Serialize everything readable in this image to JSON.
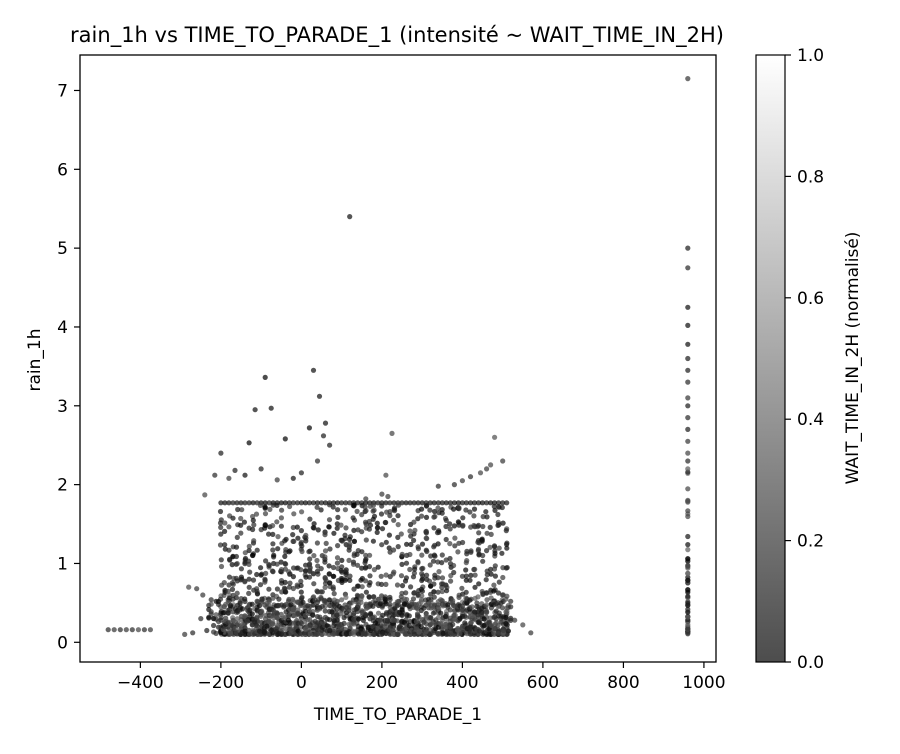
{
  "chart_data": {
    "type": "scatter",
    "title": "rain_1h vs TIME_TO_PARADE_1 (intensité ~ WAIT_TIME_IN_2H)",
    "xlabel": "TIME_TO_PARADE_1",
    "ylabel": "rain_1h",
    "xlim": [
      -550,
      1030
    ],
    "ylim": [
      -0.25,
      7.45
    ],
    "xticks": [
      -400,
      -200,
      0,
      200,
      400,
      600,
      800,
      1000
    ],
    "xtick_labels": [
      "−400",
      "−200",
      "0",
      "200",
      "400",
      "600",
      "800",
      "1000"
    ],
    "yticks": [
      0,
      1,
      2,
      3,
      4,
      5,
      6,
      7
    ],
    "ytick_labels": [
      "0",
      "1",
      "2",
      "3",
      "4",
      "5",
      "6",
      "7"
    ],
    "grid": false,
    "colormap": "gray",
    "point_alpha": 0.7,
    "colorbar": {
      "label": "WAIT_TIME_IN_2H (normalisé)",
      "range": [
        0,
        1
      ],
      "ticks": [
        0.0,
        0.2,
        0.4,
        0.6,
        0.8,
        1.0
      ],
      "tick_labels": [
        "0.0",
        "0.2",
        "0.4",
        "0.6",
        "0.8",
        "1.0"
      ]
    },
    "points": [
      [
        -480,
        0.16,
        0.15
      ],
      [
        -465,
        0.16,
        0.2
      ],
      [
        -450,
        0.16,
        0.15
      ],
      [
        -435,
        0.16,
        0.2
      ],
      [
        -420,
        0.16,
        0.15
      ],
      [
        -405,
        0.16,
        0.25
      ],
      [
        -390,
        0.16,
        0.15
      ],
      [
        -375,
        0.16,
        0.2
      ],
      [
        -290,
        0.1,
        0.2
      ],
      [
        -280,
        0.7,
        0.25
      ],
      [
        -270,
        0.12,
        0.15
      ],
      [
        -260,
        0.68,
        0.2
      ],
      [
        -250,
        0.3,
        0.15
      ],
      [
        -245,
        0.6,
        0.2
      ],
      [
        -240,
        1.87,
        0.25
      ],
      [
        -235,
        0.15,
        0.1
      ],
      [
        -215,
        2.12,
        0.15
      ],
      [
        -200,
        2.4,
        0.1
      ],
      [
        -180,
        2.08,
        0.2
      ],
      [
        -165,
        2.18,
        0.1
      ],
      [
        -140,
        2.12,
        0.05
      ],
      [
        -130,
        2.53,
        0.0
      ],
      [
        -115,
        2.95,
        0.05
      ],
      [
        -100,
        2.2,
        0.1
      ],
      [
        -90,
        3.36,
        0.0
      ],
      [
        -75,
        2.97,
        0.05
      ],
      [
        -60,
        2.06,
        0.2
      ],
      [
        -40,
        2.58,
        0.0
      ],
      [
        -20,
        2.08,
        0.05
      ],
      [
        0,
        2.15,
        0.1
      ],
      [
        20,
        2.72,
        0.0
      ],
      [
        30,
        3.45,
        0.05
      ],
      [
        40,
        2.3,
        0.15
      ],
      [
        45,
        3.12,
        0.05
      ],
      [
        55,
        2.62,
        0.1
      ],
      [
        60,
        2.78,
        0.05
      ],
      [
        70,
        2.5,
        0.1
      ],
      [
        120,
        5.4,
        0.05
      ],
      [
        160,
        1.82,
        0.2
      ],
      [
        200,
        1.88,
        0.2
      ],
      [
        210,
        2.12,
        0.25
      ],
      [
        215,
        1.85,
        0.2
      ],
      [
        225,
        2.65,
        0.25
      ],
      [
        340,
        1.98,
        0.15
      ],
      [
        380,
        2.0,
        0.15
      ],
      [
        400,
        2.05,
        0.2
      ],
      [
        420,
        2.1,
        0.15
      ],
      [
        445,
        2.15,
        0.25
      ],
      [
        460,
        2.2,
        0.2
      ],
      [
        470,
        2.25,
        0.25
      ],
      [
        480,
        2.6,
        0.3
      ],
      [
        500,
        2.3,
        0.2
      ],
      [
        520,
        0.45,
        0.15
      ],
      [
        530,
        0.28,
        0.2
      ],
      [
        550,
        0.22,
        0.25
      ],
      [
        570,
        0.12,
        0.2
      ],
      [
        960,
        7.15,
        0.2
      ],
      [
        960,
        5.0,
        0.1
      ],
      [
        960,
        4.75,
        0.15
      ],
      [
        960,
        4.25,
        0.05
      ],
      [
        960,
        4.02,
        0.05
      ],
      [
        960,
        3.78,
        0.05
      ],
      [
        960,
        3.6,
        0.1
      ],
      [
        960,
        3.45,
        0.1
      ],
      [
        960,
        3.3,
        0.15
      ],
      [
        960,
        3.1,
        0.2
      ],
      [
        960,
        3.0,
        0.1
      ],
      [
        960,
        2.85,
        0.15
      ],
      [
        960,
        2.7,
        0.1
      ],
      [
        960,
        2.55,
        0.2
      ],
      [
        960,
        2.4,
        0.25
      ],
      [
        960,
        2.3,
        0.15
      ],
      [
        960,
        2.2,
        0.35
      ]
    ]
  }
}
